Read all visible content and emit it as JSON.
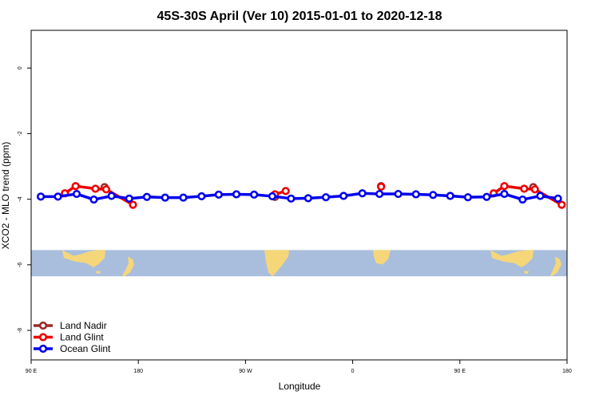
{
  "chart_data": {
    "type": "line",
    "title": "45S-30S April (Ver 10)   2015-01-01 to 2020-12-18",
    "xlabel": "Longitude",
    "ylabel": "XCO2 - MLO trend (ppm)",
    "xlim": [
      0,
      1000
    ],
    "ylim": [
      -8.9,
      1.15
    ],
    "x_ticks": [
      {
        "value": 0,
        "label": "90 E"
      },
      {
        "value": 200,
        "label": "180"
      },
      {
        "value": 400,
        "label": "90 W"
      },
      {
        "value": 600,
        "label": "0"
      },
      {
        "value": 800,
        "label": "90 E"
      },
      {
        "value": 1000,
        "label": "180"
      }
    ],
    "y_ticks": [
      {
        "value": 0,
        "label": "0"
      },
      {
        "value": -2,
        "label": "-2"
      },
      {
        "value": -4,
        "label": "-4"
      },
      {
        "value": -6,
        "label": "-6"
      },
      {
        "value": -8,
        "label": "-8"
      }
    ],
    "map_strip": {
      "y_top": -5.55,
      "y_bottom": -6.35,
      "ocean_color": "#a9bedc",
      "land_color": "#f5d77a"
    },
    "legend_position": "bottom-left",
    "grid": false,
    "series": [
      {
        "name": "Ocean Glint",
        "color": "#0000ee",
        "x": [
          18,
          50,
          85,
          117,
          150,
          183,
          216,
          250,
          284,
          318,
          350,
          383,
          416,
          450,
          485,
          517,
          550,
          583,
          618,
          650,
          685,
          718,
          750,
          782,
          815,
          850,
          883,
          917,
          950,
          983
        ],
        "y": [
          -3.92,
          -3.92,
          -3.84,
          -4.01,
          -3.9,
          -3.98,
          -3.93,
          -3.95,
          -3.95,
          -3.91,
          -3.86,
          -3.85,
          -3.86,
          -3.91,
          -3.98,
          -3.97,
          -3.94,
          -3.9,
          -3.82,
          -3.84,
          -3.84,
          -3.85,
          -3.87,
          -3.9,
          -3.94,
          -3.93,
          -3.84,
          -4.01,
          -3.9,
          -3.98
        ]
      },
      {
        "name": "Land Glint",
        "color": "#ee0000",
        "segments": [
          {
            "x": [
              63,
              83,
              120,
              140,
              190
            ],
            "y": [
              -3.82,
              -3.6,
              -3.68,
              -3.7,
              -4.17
            ]
          },
          {
            "x": [
              455,
              475
            ],
            "y": [
              -3.85,
              -3.75
            ]
          },
          {
            "x": [
              653
            ],
            "y": [
              -3.62
            ]
          },
          {
            "x": [
              863,
              883,
              920,
              940,
              990
            ],
            "y": [
              -3.82,
              -3.6,
              -3.68,
              -3.7,
              -4.17
            ]
          }
        ]
      },
      {
        "name": "Land Nadir",
        "color": "#9b2a2a",
        "segments": [
          {
            "x": [
              137
            ],
            "y": [
              -3.63
            ]
          },
          {
            "x": [
              455
            ],
            "y": [
              -3.93
            ]
          },
          {
            "x": [
              653
            ],
            "y": [
              -3.6
            ]
          },
          {
            "x": [
              937
            ],
            "y": [
              -3.63
            ]
          }
        ]
      }
    ]
  }
}
